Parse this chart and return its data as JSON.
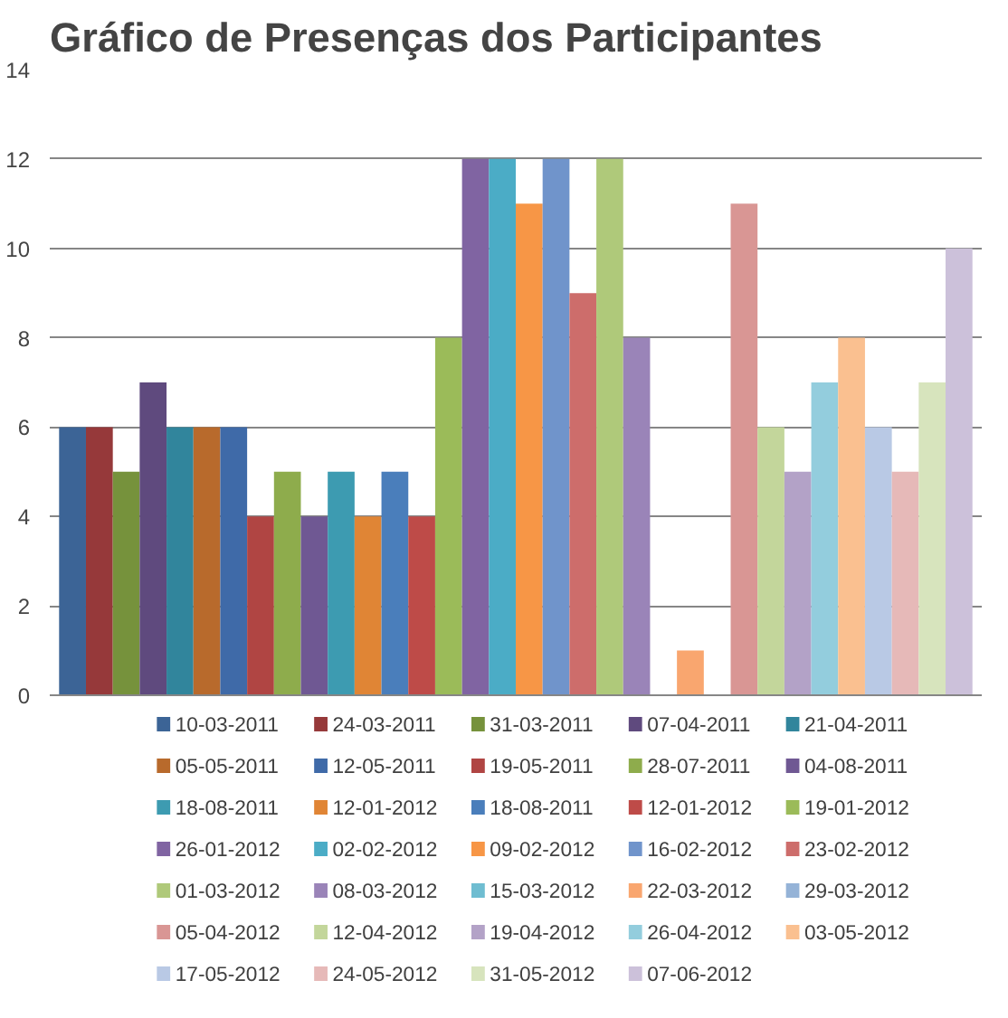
{
  "chart_data": {
    "type": "bar",
    "title": "Gráfico de Presenças dos Participantes",
    "categories": [
      null
    ],
    "series": [
      {
        "name": "10-03-2011",
        "color": "#3c6496",
        "values": [
          6
        ]
      },
      {
        "name": "24-03-2011",
        "color": "#96393a",
        "values": [
          6
        ]
      },
      {
        "name": "31-03-2011",
        "color": "#76923c",
        "values": [
          5
        ]
      },
      {
        "name": "07-04-2011",
        "color": "#5f4a7e",
        "values": [
          7
        ]
      },
      {
        "name": "21-04-2011",
        "color": "#31859c",
        "values": [
          6
        ]
      },
      {
        "name": "05-05-2011",
        "color": "#b86a2c",
        "values": [
          6
        ]
      },
      {
        "name": "12-05-2011",
        "color": "#3f6aa8",
        "values": [
          6
        ]
      },
      {
        "name": "19-05-2011",
        "color": "#b04543",
        "values": [
          4
        ]
      },
      {
        "name": "28-07-2011",
        "color": "#8eac4c",
        "values": [
          5
        ]
      },
      {
        "name": "04-08-2011",
        "color": "#6f5893",
        "values": [
          4
        ]
      },
      {
        "name": "18-08-2011",
        "color": "#3d9bb1",
        "values": [
          5
        ]
      },
      {
        "name": "12-01-2012",
        "color": "#e08535",
        "values": [
          4
        ]
      },
      {
        "name": "18-08-2011",
        "color": "#4a7ebb",
        "values": [
          5
        ]
      },
      {
        "name": "12-01-2012",
        "color": "#be4b48",
        "values": [
          4
        ]
      },
      {
        "name": "19-01-2012",
        "color": "#9bbb59",
        "values": [
          8
        ]
      },
      {
        "name": "26-01-2012",
        "color": "#8064a2",
        "values": [
          12
        ]
      },
      {
        "name": "02-02-2012",
        "color": "#4bacc6",
        "values": [
          12
        ]
      },
      {
        "name": "09-02-2012",
        "color": "#f79646",
        "values": [
          11
        ]
      },
      {
        "name": "16-02-2012",
        "color": "#7094cb",
        "values": [
          12
        ]
      },
      {
        "name": "23-02-2012",
        "color": "#cd6d6b",
        "values": [
          9
        ]
      },
      {
        "name": "01-03-2012",
        "color": "#afc97a",
        "values": [
          12
        ]
      },
      {
        "name": "08-03-2012",
        "color": "#9a84b8",
        "values": [
          8
        ]
      },
      {
        "name": "15-03-2012",
        "color": "#6fbdd1",
        "values": [
          0
        ]
      },
      {
        "name": "22-03-2012",
        "color": "#f9a66f",
        "values": [
          1
        ]
      },
      {
        "name": "29-03-2012",
        "color": "#95b3d7",
        "values": [
          0
        ]
      },
      {
        "name": "05-04-2012",
        "color": "#d99694",
        "values": [
          11
        ]
      },
      {
        "name": "12-04-2012",
        "color": "#c3d69b",
        "values": [
          6
        ]
      },
      {
        "name": "19-04-2012",
        "color": "#b3a2c7",
        "values": [
          5
        ]
      },
      {
        "name": "26-04-2012",
        "color": "#93cddd",
        "values": [
          7
        ]
      },
      {
        "name": "03-05-2012",
        "color": "#fac090",
        "values": [
          8
        ]
      },
      {
        "name": "17-05-2012",
        "color": "#b9c9e5",
        "values": [
          6
        ]
      },
      {
        "name": "24-05-2012",
        "color": "#e6b9b8",
        "values": [
          5
        ]
      },
      {
        "name": "31-05-2012",
        "color": "#d7e4bd",
        "values": [
          7
        ]
      },
      {
        "name": "07-06-2012",
        "color": "#ccc1da",
        "values": [
          10
        ]
      }
    ],
    "ylim": [
      0,
      14
    ],
    "yticks": [
      0,
      2,
      4,
      6,
      8,
      10,
      12,
      14
    ],
    "grid": "y",
    "legend": "bottom"
  }
}
